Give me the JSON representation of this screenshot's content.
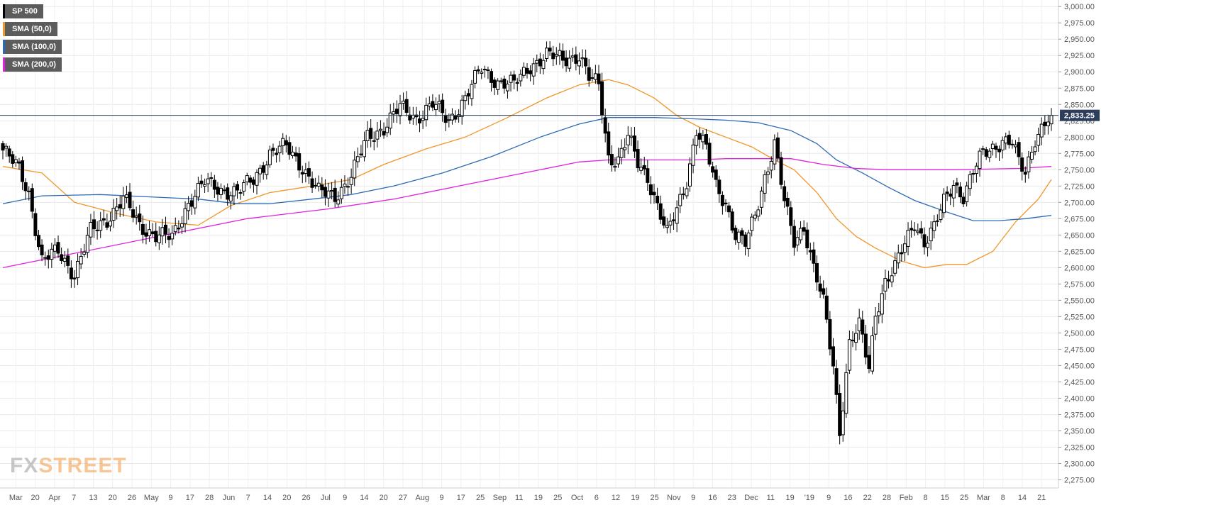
{
  "legend": [
    {
      "label": "SP 500",
      "color": "#000000"
    },
    {
      "label": "SMA (50,0)",
      "color": "#f0962a"
    },
    {
      "label": "SMA (100,0)",
      "color": "#2d6bb5"
    },
    {
      "label": "SMA (200,0)",
      "color": "#e020e0"
    }
  ],
  "logo": {
    "part1": "FX",
    "part2": "STREET"
  },
  "price_tag": {
    "label": "2,833.25",
    "color": "#2d3e5c"
  },
  "chart_data": {
    "type": "candlestick",
    "title": "",
    "xlabel": "",
    "ylabel": "",
    "ylim": [
      2262.5,
      3010
    ],
    "grid": true,
    "y_ticks": [
      "3,000.00",
      "2,975.00",
      "2,950.00",
      "2,925.00",
      "2,900.00",
      "2,875.00",
      "2,850.00",
      "2,825.00",
      "2,800.00",
      "2,775.00",
      "2,750.00",
      "2,725.00",
      "2,700.00",
      "2,675.00",
      "2,650.00",
      "2,625.00",
      "2,600.00",
      "2,575.00",
      "2,550.00",
      "2,525.00",
      "2,500.00",
      "2,475.00",
      "2,450.00",
      "2,425.00",
      "2,400.00",
      "2,375.00",
      "2,350.00",
      "2,325.00",
      "2,300.00",
      "2,275.00"
    ],
    "x_ticks": [
      "Mar",
      "20",
      "Apr",
      "7",
      "13",
      "20",
      "26",
      "May",
      "9",
      "17",
      "28",
      "Jun",
      "7",
      "14",
      "20",
      "26",
      "Jul",
      "9",
      "14",
      "20",
      "27",
      "Aug",
      "9",
      "17",
      "25",
      "Sep",
      "11",
      "19",
      "25",
      "Oct",
      "6",
      "12",
      "19",
      "25",
      "Nov",
      "9",
      "16",
      "23",
      "Dec",
      "11",
      "19",
      "'19",
      "9",
      "16",
      "22",
      "28",
      "Feb",
      "8",
      "15",
      "25",
      "Mar",
      "8",
      "14",
      "21"
    ],
    "x_tick_position": [
      "Mar",
      "20",
      "Apr",
      "7",
      "13",
      "20",
      "26",
      "May",
      "9",
      "17",
      "28",
      "Jun",
      "7",
      "14",
      "20",
      "26",
      "Jul",
      "9",
      "14",
      "20",
      "27",
      "Aug",
      "9",
      "17",
      "25",
      "Sep",
      "11",
      "19",
      "25",
      "Oct",
      "6",
      "12",
      "19",
      "25",
      "Nov",
      "9",
      "16",
      "23",
      "Dec",
      "11",
      "19",
      "'19",
      "9",
      "16",
      "22",
      "28",
      "Feb",
      "8",
      "15",
      "25",
      "Mar",
      "8",
      "14",
      "21"
    ],
    "last_price": 2833.25,
    "series": [
      {
        "name": "SP 500",
        "style": "candles",
        "anchors": [
          {
            "i": 0,
            "c": 2780
          },
          {
            "i": 5,
            "c": 2750
          },
          {
            "i": 8,
            "c": 2715
          },
          {
            "i": 12,
            "c": 2610
          },
          {
            "i": 17,
            "c": 2625
          },
          {
            "i": 22,
            "c": 2590
          },
          {
            "i": 27,
            "c": 2655
          },
          {
            "i": 32,
            "c": 2675
          },
          {
            "i": 37,
            "c": 2705
          },
          {
            "i": 42,
            "c": 2665
          },
          {
            "i": 47,
            "c": 2650
          },
          {
            "i": 52,
            "c": 2645
          },
          {
            "i": 57,
            "c": 2700
          },
          {
            "i": 62,
            "c": 2730
          },
          {
            "i": 67,
            "c": 2720
          },
          {
            "i": 72,
            "c": 2715
          },
          {
            "i": 77,
            "c": 2735
          },
          {
            "i": 82,
            "c": 2775
          },
          {
            "i": 87,
            "c": 2785
          },
          {
            "i": 92,
            "c": 2755
          },
          {
            "i": 97,
            "c": 2715
          },
          {
            "i": 102,
            "c": 2710
          },
          {
            "i": 107,
            "c": 2740
          },
          {
            "i": 112,
            "c": 2800
          },
          {
            "i": 117,
            "c": 2815
          },
          {
            "i": 122,
            "c": 2845
          },
          {
            "i": 127,
            "c": 2830
          },
          {
            "i": 132,
            "c": 2850
          },
          {
            "i": 137,
            "c": 2825
          },
          {
            "i": 142,
            "c": 2860
          },
          {
            "i": 147,
            "c": 2905
          },
          {
            "i": 152,
            "c": 2885
          },
          {
            "i": 157,
            "c": 2880
          },
          {
            "i": 162,
            "c": 2910
          },
          {
            "i": 167,
            "c": 2925
          },
          {
            "i": 172,
            "c": 2920
          },
          {
            "i": 177,
            "c": 2925
          },
          {
            "i": 180,
            "c": 2890
          },
          {
            "i": 183,
            "c": 2880
          },
          {
            "i": 186,
            "c": 2770
          },
          {
            "i": 189,
            "c": 2765
          },
          {
            "i": 192,
            "c": 2800
          },
          {
            "i": 195,
            "c": 2760
          },
          {
            "i": 198,
            "c": 2740
          },
          {
            "i": 201,
            "c": 2695
          },
          {
            "i": 204,
            "c": 2650
          },
          {
            "i": 207,
            "c": 2690
          },
          {
            "i": 210,
            "c": 2735
          },
          {
            "i": 213,
            "c": 2810
          },
          {
            "i": 216,
            "c": 2780
          },
          {
            "i": 219,
            "c": 2725
          },
          {
            "i": 222,
            "c": 2700
          },
          {
            "i": 225,
            "c": 2650
          },
          {
            "i": 228,
            "c": 2635
          },
          {
            "i": 231,
            "c": 2680
          },
          {
            "i": 234,
            "c": 2740
          },
          {
            "i": 237,
            "c": 2790
          },
          {
            "i": 240,
            "c": 2700
          },
          {
            "i": 243,
            "c": 2640
          },
          {
            "i": 246,
            "c": 2665
          },
          {
            "i": 249,
            "c": 2600
          },
          {
            "i": 252,
            "c": 2545
          },
          {
            "i": 255,
            "c": 2450
          },
          {
            "i": 257,
            "c": 2350
          },
          {
            "i": 260,
            "c": 2485
          },
          {
            "i": 263,
            "c": 2510
          },
          {
            "i": 266,
            "c": 2445
          },
          {
            "i": 268,
            "c": 2530
          },
          {
            "i": 271,
            "c": 2580
          },
          {
            "i": 274,
            "c": 2600
          },
          {
            "i": 277,
            "c": 2635
          },
          {
            "i": 280,
            "c": 2670
          },
          {
            "i": 283,
            "c": 2640
          },
          {
            "i": 286,
            "c": 2660
          },
          {
            "i": 289,
            "c": 2700
          },
          {
            "i": 292,
            "c": 2730
          },
          {
            "i": 295,
            "c": 2710
          },
          {
            "i": 298,
            "c": 2745
          },
          {
            "i": 301,
            "c": 2775
          },
          {
            "i": 304,
            "c": 2785
          },
          {
            "i": 307,
            "c": 2795
          },
          {
            "i": 310,
            "c": 2790
          },
          {
            "i": 312,
            "c": 2760
          },
          {
            "i": 314,
            "c": 2745
          },
          {
            "i": 317,
            "c": 2800
          },
          {
            "i": 320,
            "c": 2822
          },
          {
            "i": 322,
            "c": 2833.25
          }
        ]
      },
      {
        "name": "SMA (50,0)",
        "style": "line",
        "color": "#f0962a",
        "points": [
          [
            0,
            2755
          ],
          [
            12,
            2745
          ],
          [
            22,
            2700
          ],
          [
            35,
            2683
          ],
          [
            47,
            2670
          ],
          [
            60,
            2665
          ],
          [
            70,
            2695
          ],
          [
            82,
            2715
          ],
          [
            95,
            2725
          ],
          [
            107,
            2735
          ],
          [
            117,
            2758
          ],
          [
            130,
            2782
          ],
          [
            142,
            2800
          ],
          [
            155,
            2830
          ],
          [
            167,
            2860
          ],
          [
            177,
            2880
          ],
          [
            186,
            2888
          ],
          [
            192,
            2880
          ],
          [
            200,
            2860
          ],
          [
            207,
            2833
          ],
          [
            214,
            2815
          ],
          [
            222,
            2800
          ],
          [
            230,
            2785
          ],
          [
            237,
            2765
          ],
          [
            243,
            2750
          ],
          [
            250,
            2715
          ],
          [
            256,
            2675
          ],
          [
            262,
            2648
          ],
          [
            268,
            2630
          ],
          [
            276,
            2610
          ],
          [
            283,
            2600
          ],
          [
            290,
            2605
          ],
          [
            296,
            2605
          ],
          [
            304,
            2625
          ],
          [
            311,
            2670
          ],
          [
            318,
            2705
          ],
          [
            322,
            2735
          ]
        ]
      },
      {
        "name": "SMA (100,0)",
        "style": "line",
        "color": "#2d6bb5",
        "points": [
          [
            0,
            2698
          ],
          [
            12,
            2710
          ],
          [
            30,
            2712
          ],
          [
            47,
            2708
          ],
          [
            60,
            2705
          ],
          [
            72,
            2698
          ],
          [
            82,
            2698
          ],
          [
            95,
            2705
          ],
          [
            107,
            2712
          ],
          [
            120,
            2725
          ],
          [
            135,
            2745
          ],
          [
            150,
            2770
          ],
          [
            165,
            2800
          ],
          [
            177,
            2820
          ],
          [
            186,
            2830
          ],
          [
            200,
            2830
          ],
          [
            212,
            2828
          ],
          [
            222,
            2826
          ],
          [
            232,
            2822
          ],
          [
            242,
            2810
          ],
          [
            250,
            2790
          ],
          [
            256,
            2765
          ],
          [
            264,
            2745
          ],
          [
            272,
            2723
          ],
          [
            280,
            2703
          ],
          [
            290,
            2685
          ],
          [
            298,
            2672
          ],
          [
            306,
            2672
          ],
          [
            314,
            2675
          ],
          [
            322,
            2680
          ]
        ]
      },
      {
        "name": "SMA (200,0)",
        "style": "line",
        "color": "#e020e0",
        "points": [
          [
            0,
            2600
          ],
          [
            25,
            2625
          ],
          [
            50,
            2650
          ],
          [
            75,
            2675
          ],
          [
            100,
            2690
          ],
          [
            120,
            2705
          ],
          [
            140,
            2725
          ],
          [
            160,
            2745
          ],
          [
            177,
            2762
          ],
          [
            186,
            2765
          ],
          [
            200,
            2765
          ],
          [
            212,
            2765
          ],
          [
            222,
            2767
          ],
          [
            232,
            2767
          ],
          [
            242,
            2767
          ],
          [
            252,
            2758
          ],
          [
            262,
            2752
          ],
          [
            272,
            2750
          ],
          [
            282,
            2750
          ],
          [
            292,
            2750
          ],
          [
            302,
            2751
          ],
          [
            312,
            2752
          ],
          [
            322,
            2755
          ]
        ]
      }
    ]
  }
}
